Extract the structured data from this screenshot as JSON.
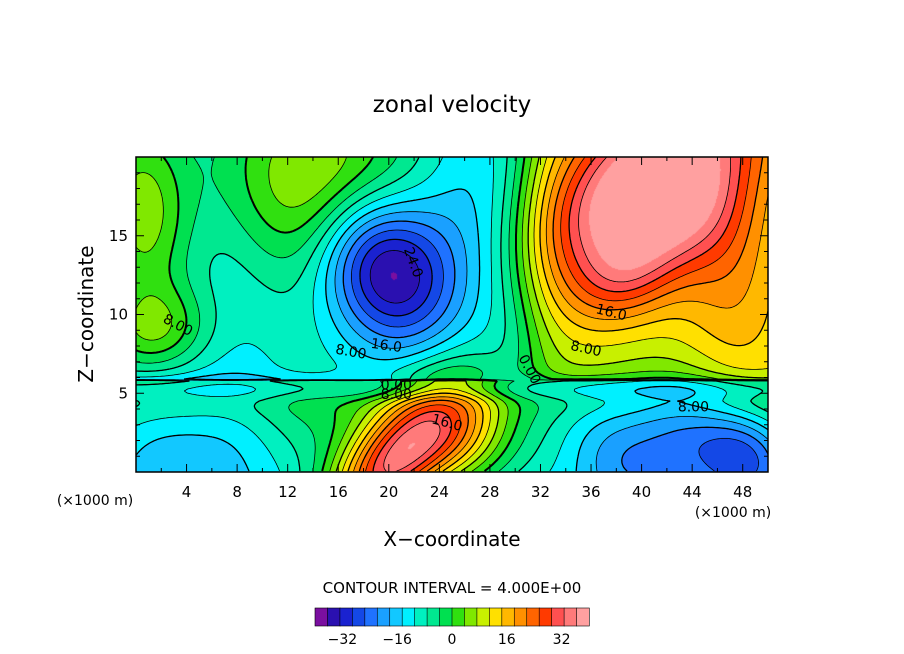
{
  "chart_data": {
    "type": "heatmap",
    "title": "zonal velocity",
    "xlabel": "X−coordinate",
    "ylabel": "Z−coordinate",
    "x_unit_left": "(×1000 m)",
    "x_unit_right": "(×1000 m)",
    "xlim": [
      0,
      50
    ],
    "ylim": [
      0,
      20
    ],
    "x_ticks": [
      4,
      8,
      12,
      16,
      20,
      24,
      28,
      32,
      36,
      40,
      44,
      48
    ],
    "y_ticks": [
      5,
      10,
      15
    ],
    "contour_interval_label": "CONTOUR INTERVAL = 4.000E+00",
    "contour_interval": 4,
    "value_range": [
      -40,
      40
    ],
    "colorbar": {
      "tick_values": [
        -32,
        -16,
        0,
        16,
        32
      ],
      "tick_labels": [
        "−32",
        "−16",
        "0",
        "16",
        "32"
      ],
      "colors": [
        "#7a0fa0",
        "#2a10b0",
        "#1a22d0",
        "#1448e6",
        "#1f72ff",
        "#1aa0ff",
        "#12c8ff",
        "#00f0ff",
        "#00f0c0",
        "#00e890",
        "#00e050",
        "#30e010",
        "#80e800",
        "#c8f000",
        "#ffe000",
        "#ffb800",
        "#ff9000",
        "#ff6400",
        "#ff3a00",
        "#ff5050",
        "#ff7a7a",
        "#ffa0a0"
      ]
    },
    "contour_labels": [
      {
        "text": "24.0",
        "x": 21.9,
        "z": 13.3,
        "rotate": 70
      },
      {
        "text": "16.0",
        "x": 19.8,
        "z": 8.0,
        "rotate": 8
      },
      {
        "text": "8.00",
        "x": 17.0,
        "z": 7.6,
        "rotate": 10
      },
      {
        "text": "0.00",
        "x": 20.6,
        "z": 5.5,
        "rotate": 0
      },
      {
        "text": "8.00",
        "x": 20.6,
        "z": 4.9,
        "rotate": 0
      },
      {
        "text": "16.0",
        "x": 24.6,
        "z": 3.1,
        "rotate": 15
      },
      {
        "text": "8.00",
        "x": 3.3,
        "z": 9.3,
        "rotate": 28
      },
      {
        "text": "0.00",
        "x": 31.1,
        "z": 6.5,
        "rotate": 62
      },
      {
        "text": "16.0",
        "x": 37.6,
        "z": 10.1,
        "rotate": 14
      },
      {
        "text": "8.00",
        "x": 35.6,
        "z": 7.8,
        "rotate": 12
      },
      {
        "text": "8.00",
        "x": 44.1,
        "z": 4.1,
        "rotate": 0
      }
    ],
    "field_features": [
      {
        "x": 19.5,
        "z": 13.2,
        "sx": 4.0,
        "sz": 3.3,
        "a": -34
      },
      {
        "x": 15.5,
        "z": 17.5,
        "sx": 6.0,
        "sz": 4.5,
        "a": -14
      },
      {
        "x": 26.0,
        "z": 16.5,
        "sx": 3.5,
        "sz": 5.0,
        "a": -10
      },
      {
        "x": 20.0,
        "z": 0.2,
        "sx": 4.5,
        "sz": 2.2,
        "a": 38
      },
      {
        "x": 25.5,
        "z": 2.5,
        "sx": 3.0,
        "sz": 2.5,
        "a": 6
      },
      {
        "x": 40.5,
        "z": 18.5,
        "sx": 7.0,
        "sz": 3.5,
        "a": 30
      },
      {
        "x": 43.0,
        "z": 16.0,
        "sx": 3.5,
        "sz": 2.5,
        "a": 8
      },
      {
        "x": 38.8,
        "z": 12.3,
        "sx": 3.0,
        "sz": 2.0,
        "a": 14
      },
      {
        "x": 47.0,
        "z": 12.5,
        "sx": 3.0,
        "sz": 5.0,
        "a": 8
      },
      {
        "x": 0.5,
        "z": 16.5,
        "sx": 2.5,
        "sz": 4.0,
        "a": 4
      },
      {
        "x": 1.5,
        "z": 9.0,
        "sx": 3.0,
        "sz": 2.0,
        "a": 6
      },
      {
        "x": 44.0,
        "z": 2.5,
        "sx": 4.0,
        "sz": 2.5,
        "a": -14
      },
      {
        "x": 38.5,
        "z": 0.5,
        "sx": 3.0,
        "sz": 2.0,
        "a": -6
      },
      {
        "x": 36.0,
        "z": 3.5,
        "sx": 3.0,
        "sz": 2.0,
        "a": -4
      },
      {
        "x": 48.5,
        "z": 1.0,
        "sx": 2.5,
        "sz": 2.0,
        "a": -8
      },
      {
        "x": 2.0,
        "z": 2.0,
        "sx": 4.0,
        "sz": 3.0,
        "a": -12
      },
      {
        "x": 8.0,
        "z": 2.5,
        "sx": 3.0,
        "sz": 3.0,
        "a": 3
      },
      {
        "x": 30.0,
        "z": 9.0,
        "sx": 2.5,
        "sz": 5.0,
        "a": 2
      },
      {
        "x": 8.0,
        "z": 13.0,
        "sx": 3.0,
        "sz": 5.0,
        "a": 2
      }
    ]
  }
}
